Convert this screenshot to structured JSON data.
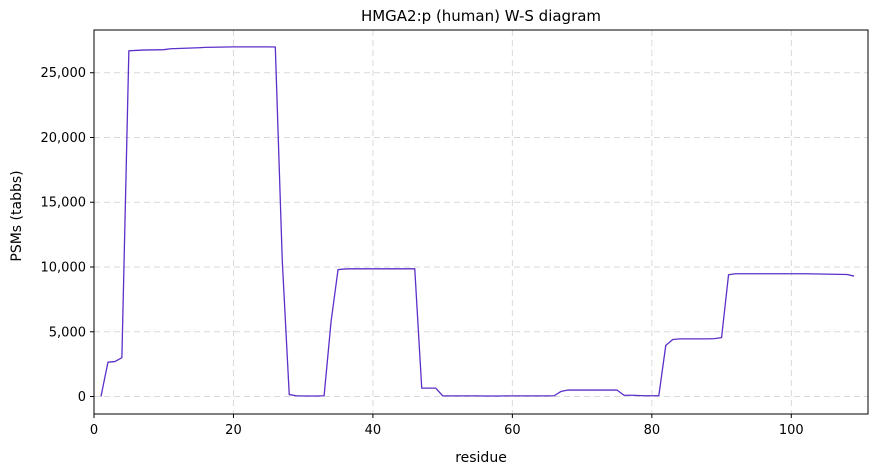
{
  "chart_data": {
    "type": "line",
    "title": "HMGA2:p (human) W-S diagram",
    "xlabel": "residue",
    "ylabel": "PSMs (tabbs)",
    "xlim": [
      0,
      111
    ],
    "ylim": [
      -1350,
      28300
    ],
    "x_ticks": [
      0,
      20,
      40,
      60,
      80,
      100
    ],
    "y_ticks": [
      0,
      5000,
      10000,
      15000,
      20000,
      25000
    ],
    "x_tick_labels": [
      "0",
      "20",
      "40",
      "60",
      "80",
      "100"
    ],
    "y_tick_labels": [
      "0",
      "5,000",
      "10,000",
      "15,000",
      "20,000",
      "25,000"
    ],
    "grid": true,
    "line_color": "#5b2fc9",
    "series": [
      {
        "x": [
          1,
          2,
          3,
          4,
          5,
          6,
          7,
          8,
          9,
          10,
          11,
          12,
          13,
          14,
          15,
          16,
          17,
          18,
          19,
          20,
          21,
          22,
          23,
          24,
          25,
          26,
          27,
          28,
          29,
          30,
          31,
          32,
          33,
          34,
          35,
          36,
          37,
          38,
          39,
          40,
          41,
          42,
          43,
          44,
          45,
          46,
          47,
          48,
          49,
          50,
          51,
          52,
          53,
          54,
          55,
          56,
          57,
          58,
          59,
          60,
          61,
          62,
          63,
          64,
          65,
          66,
          67,
          68,
          69,
          70,
          71,
          72,
          73,
          74,
          75,
          76,
          77,
          78,
          79,
          80,
          81,
          82,
          83,
          84,
          85,
          86,
          87,
          88,
          89,
          90,
          91,
          92,
          93,
          94,
          95,
          96,
          97,
          98,
          99,
          100,
          101,
          102,
          103,
          104,
          105,
          106,
          107,
          108,
          109
        ],
        "values": [
          0,
          2650,
          2700,
          3000,
          26700,
          26720,
          26750,
          26760,
          26770,
          26780,
          26850,
          26870,
          26890,
          26910,
          26930,
          26960,
          26970,
          26980,
          26990,
          27000,
          27000,
          27000,
          27000,
          27000,
          27000,
          26990,
          10500,
          150,
          60,
          40,
          40,
          40,
          60,
          5800,
          9800,
          9850,
          9860,
          9860,
          9860,
          9860,
          9860,
          9860,
          9860,
          9860,
          9860,
          9860,
          650,
          650,
          650,
          50,
          50,
          50,
          50,
          50,
          50,
          40,
          40,
          40,
          50,
          50,
          50,
          50,
          50,
          50,
          50,
          60,
          400,
          500,
          500,
          500,
          500,
          500,
          500,
          500,
          500,
          100,
          100,
          80,
          60,
          60,
          60,
          3950,
          4400,
          4450,
          4450,
          4450,
          4450,
          4450,
          4470,
          4550,
          9400,
          9480,
          9480,
          9480,
          9480,
          9480,
          9480,
          9480,
          9480,
          9480,
          9480,
          9480,
          9470,
          9460,
          9450,
          9440,
          9430,
          9420,
          9300
        ]
      }
    ]
  }
}
